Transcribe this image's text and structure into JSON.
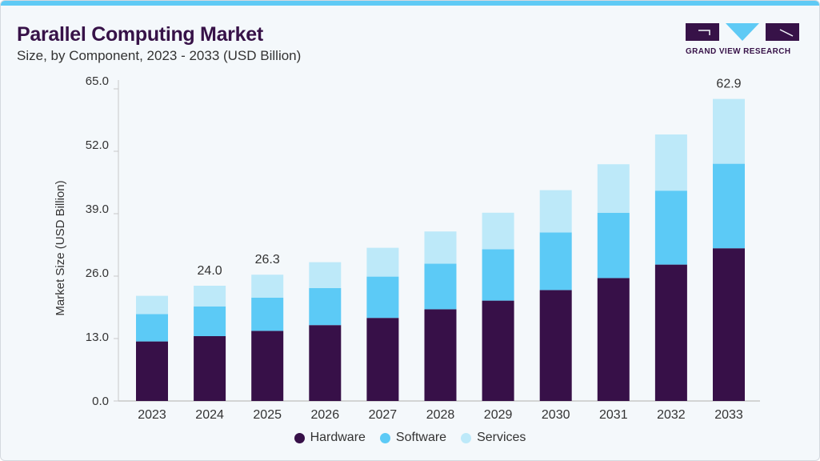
{
  "header": {
    "title": "Parallel Computing Market",
    "subtitle": "Size, by Component, 2023 - 2033 (USD Billion)",
    "logo_text": "GRAND VIEW RESEARCH"
  },
  "colors": {
    "Hardware": "#371048",
    "Software": "#5ccaf6",
    "Services": "#bde9f9",
    "accent": "#5fcaf5"
  },
  "chart_data": {
    "type": "bar",
    "stacked": true,
    "title": "Parallel Computing Market",
    "subtitle": "Size, by Component, 2023 - 2033 (USD Billion)",
    "xlabel": "",
    "ylabel": "Market Size (USD Billion)",
    "ylim": [
      0,
      65
    ],
    "yticks": [
      "0.0",
      "13.0",
      "26.0",
      "39.0",
      "52.0",
      "65.0"
    ],
    "ytick_values": [
      0,
      13,
      26,
      39,
      52,
      65
    ],
    "grid": false,
    "legend": "bottom",
    "categories": [
      "2023",
      "2024",
      "2025",
      "2026",
      "2027",
      "2028",
      "2029",
      "2030",
      "2031",
      "2032",
      "2033"
    ],
    "series": [
      {
        "name": "Hardware",
        "values": [
          12.4,
          13.5,
          14.6,
          15.8,
          17.3,
          19.1,
          20.9,
          23.1,
          25.6,
          28.4,
          31.8
        ]
      },
      {
        "name": "Software",
        "values": [
          5.7,
          6.2,
          6.9,
          7.7,
          8.6,
          9.5,
          10.7,
          12.0,
          13.6,
          15.4,
          17.6
        ]
      },
      {
        "name": "Services",
        "values": [
          3.8,
          4.3,
          4.8,
          5.4,
          6.0,
          6.7,
          7.6,
          8.8,
          10.1,
          11.7,
          13.5
        ]
      }
    ],
    "data_labels": [
      {
        "category": "2024",
        "text": "24.0"
      },
      {
        "category": "2025",
        "text": "26.3"
      },
      {
        "category": "2033",
        "text": "62.9"
      }
    ]
  }
}
